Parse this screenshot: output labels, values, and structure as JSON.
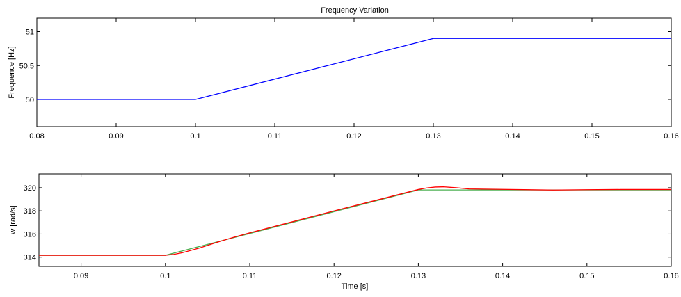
{
  "chart_data": [
    {
      "type": "line",
      "title": "Frequency Variation",
      "xlabel": "",
      "ylabel": "Frequence [Hz]",
      "xlim": [
        0.08,
        0.16
      ],
      "ylim": [
        49.6,
        51.2
      ],
      "xticks": [
        "0.08",
        "0.09",
        "0.1",
        "0.11",
        "0.12",
        "0.13",
        "0.14",
        "0.15",
        "0.16"
      ],
      "xtick_values": [
        0.08,
        0.09,
        0.1,
        0.11,
        0.12,
        0.13,
        0.14,
        0.15,
        0.16
      ],
      "yticks": [
        "50",
        "50.5",
        "51"
      ],
      "ytick_values": [
        50,
        50.5,
        51
      ],
      "grid": false,
      "series": [
        {
          "color": "#0000ff",
          "x": [
            0.08,
            0.1,
            0.13,
            0.16
          ],
          "y": [
            50.0,
            50.0,
            50.9,
            50.9
          ]
        }
      ]
    },
    {
      "type": "line",
      "title": "",
      "xlabel": "Time [s]",
      "ylabel": "w [rad/s]",
      "xlim": [
        0.085,
        0.16
      ],
      "ylim": [
        313.2,
        321.2
      ],
      "xticks": [
        "0.09",
        "0.1",
        "0.11",
        "0.12",
        "0.13",
        "0.14",
        "0.15",
        "0.16"
      ],
      "xtick_values": [
        0.09,
        0.1,
        0.11,
        0.12,
        0.13,
        0.14,
        0.15,
        0.16
      ],
      "yticks": [
        "314",
        "316",
        "318",
        "320"
      ],
      "ytick_values": [
        314,
        316,
        318,
        320
      ],
      "grid": false,
      "series": [
        {
          "color": "#4caf50",
          "x": [
            0.085,
            0.1,
            0.13,
            0.16
          ],
          "y": [
            314.16,
            314.16,
            319.81,
            319.81
          ]
        },
        {
          "color": "#ff0000",
          "x": [
            0.085,
            0.1,
            0.101,
            0.102,
            0.104,
            0.106,
            0.108,
            0.11,
            0.12,
            0.13,
            0.131,
            0.132,
            0.133,
            0.1345,
            0.136,
            0.14,
            0.146,
            0.15,
            0.154,
            0.16
          ],
          "y": [
            314.16,
            314.16,
            314.24,
            314.38,
            314.78,
            315.25,
            315.7,
            316.1,
            318.0,
            319.85,
            319.98,
            320.06,
            320.08,
            320.0,
            319.9,
            319.86,
            319.8,
            319.83,
            319.85,
            319.85
          ]
        }
      ]
    }
  ]
}
